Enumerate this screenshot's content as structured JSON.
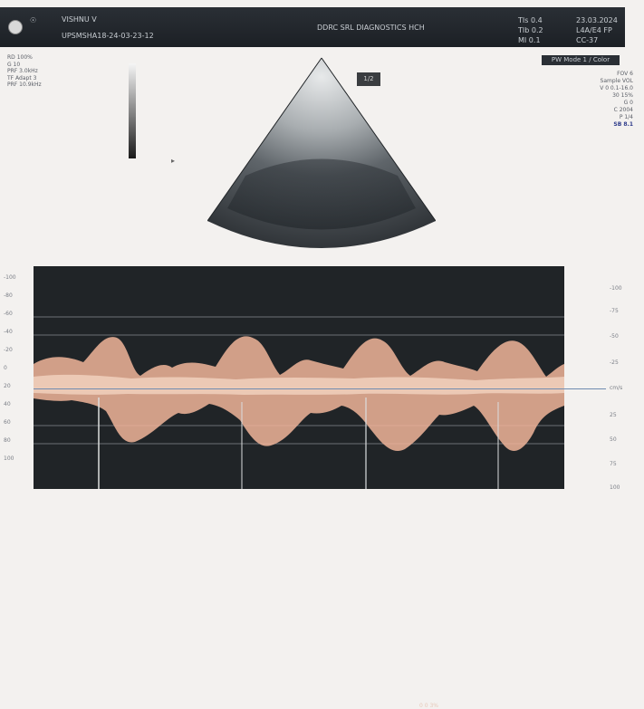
{
  "header": {
    "patient_name": "VISHNU V",
    "study_id": "UPSMSHA18-24-03-23-12",
    "hospital": "DDRC SRL DIAGNOSTICS HCH",
    "tis": "TIs 0.4",
    "tib": "TIb 0.2",
    "mi": "MI 0.1",
    "date": "23.03.2024",
    "probe": "L4A/E4 FP",
    "preset": "CC-37"
  },
  "pw_box": "PW Mode 1 / Color",
  "left_info": [
    "RD 100%",
    "G 10",
    "PRF 3.0kHz",
    "TF Adapt 3",
    "PRF 10.9kHz"
  ],
  "right_info": [
    "FOV 6",
    "Sample VOL",
    "V 0 0.1-16.0",
    "30 15%",
    "G 0",
    "C 2004",
    "P 1/4",
    "SB 8.1"
  ],
  "image_tag": "1/2",
  "doppler": {
    "left_scale": [
      "-100",
      "-80",
      "-60",
      "-40",
      "-20",
      "0",
      "20",
      "40",
      "60",
      "80",
      "100"
    ],
    "right_scale": [
      "-100",
      "-75",
      "-50",
      "-25",
      "cm/s",
      "25",
      "50",
      "75",
      "100"
    ],
    "sv_text": "0 0 3%"
  }
}
